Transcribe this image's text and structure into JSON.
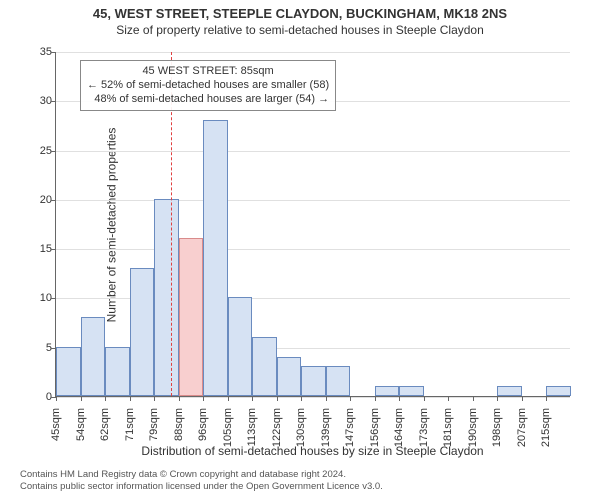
{
  "title_line1": "45, WEST STREET, STEEPLE CLAYDON, BUCKINGHAM, MK18 2NS",
  "title_line2": "Size of property relative to semi-detached houses in Steeple Claydon",
  "title1_fontsize": 13,
  "title2_fontsize": 12,
  "ylabel": "Number of semi-detached properties",
  "xlabel": "Distribution of semi-detached houses by size in Steeple Claydon",
  "footer_line1": "Contains HM Land Registry data © Crown copyright and database right 2024.",
  "footer_line2": "Contains public sector information licensed under the Open Government Licence v3.0.",
  "chart": {
    "type": "histogram",
    "background_color": "#ffffff",
    "grid_color": "#e0e0e0",
    "axis_color": "#666666",
    "text_color": "#333333",
    "bar_fill": "#d6e2f3",
    "bar_border": "#6a8bbf",
    "highlight_bar_fill": "#f8cfcf",
    "highlight_bar_border": "#d98b8b",
    "ref_line_color": "#e04040",
    "ylim": [
      0,
      35
    ],
    "yticks": [
      0,
      5,
      10,
      15,
      20,
      25,
      30,
      35
    ],
    "xtick_interval_sqm": 8.5,
    "xtick_start": 45,
    "xtick_count": 21,
    "xtick_suffix": "sqm",
    "ref_value_sqm": 85,
    "highlight_index": 5,
    "values": [
      5,
      8,
      5,
      13,
      20,
      16,
      28,
      10,
      6,
      4,
      3,
      3,
      0,
      1,
      1,
      0,
      0,
      0,
      1,
      0,
      1
    ]
  },
  "annotation": {
    "line1": "45 WEST STREET: 85sqm",
    "line2": "← 52% of semi-detached houses are smaller (58)",
    "line3": "48% of semi-detached houses are larger (54) →"
  }
}
